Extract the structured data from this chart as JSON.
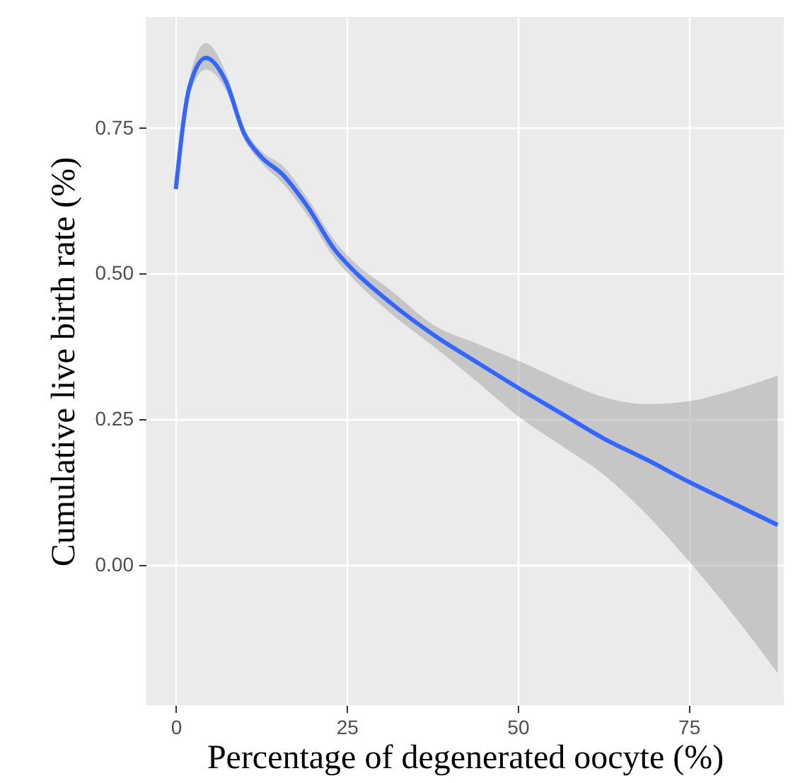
{
  "chart_data": {
    "type": "line",
    "xlabel": "Percentage of degenerated oocyte (%)",
    "ylabel": "Cumulative live birth rate (%)",
    "x": [
      0,
      2,
      4.4,
      7.3,
      10,
      12.5,
      15.6,
      19.2,
      23.3,
      25.6,
      31.6,
      37.8,
      44,
      50.2,
      56.4,
      62.6,
      69,
      75,
      81.5,
      88
    ],
    "series": [
      {
        "color": "#3366ff",
        "values": [
          0.645,
          0.82,
          0.87,
          0.83,
          0.74,
          0.7,
          0.67,
          0.616,
          0.54,
          0.51,
          0.448,
          0.394,
          0.348,
          0.303,
          0.26,
          0.217,
          0.18,
          0.143,
          0.106,
          0.069
        ],
        "upper": [
          0.65,
          0.835,
          0.895,
          0.845,
          0.75,
          0.71,
          0.685,
          0.63,
          0.555,
          0.525,
          0.47,
          0.411,
          0.38,
          0.35,
          0.317,
          0.288,
          0.276,
          0.281,
          0.3,
          0.325
        ],
        "lower": [
          0.64,
          0.805,
          0.85,
          0.815,
          0.73,
          0.69,
          0.655,
          0.6,
          0.525,
          0.495,
          0.43,
          0.374,
          0.315,
          0.254,
          0.205,
          0.155,
          0.085,
          0.007,
          -0.085,
          -0.185
        ]
      }
    ],
    "xlim": [
      -4.4,
      88.9
    ],
    "ylim": [
      -0.24,
      0.94
    ],
    "xticks": [
      0,
      25,
      50,
      75
    ],
    "yticks": [
      {
        "value": 0,
        "label": "0.00"
      },
      {
        "value": 0.25,
        "label": "0.25"
      },
      {
        "value": 0.5,
        "label": "0.50"
      },
      {
        "value": 0.75,
        "label": "0.75"
      }
    ],
    "grid": true,
    "marker": "none",
    "line_style": "solid"
  }
}
